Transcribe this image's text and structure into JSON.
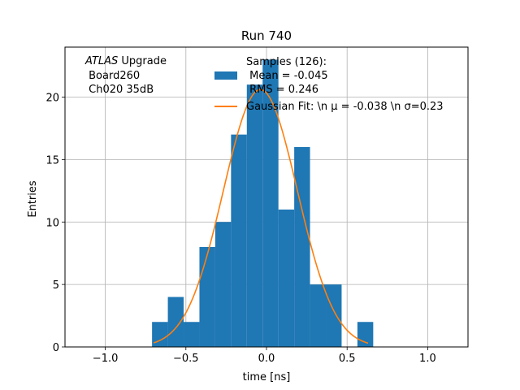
{
  "chart_data": {
    "type": "bar",
    "title": "Run 740",
    "xlabel": "time [ns]",
    "ylabel": "Entries",
    "xlim": [
      -1.25,
      1.25
    ],
    "ylim": [
      0,
      24
    ],
    "grid": true,
    "legend_placement": "top-center",
    "annotation": {
      "italic": "ATLAS",
      "rest": " Upgrade",
      "line2": " Board260",
      "line3": " Ch020 35dB"
    },
    "x_ticks": [
      {
        "value": -1.0,
        "label": "−1.0"
      },
      {
        "value": -0.5,
        "label": "−0.5"
      },
      {
        "value": 0.0,
        "label": "0.0"
      },
      {
        "value": 0.5,
        "label": "0.5"
      },
      {
        "value": 1.0,
        "label": "1.0"
      }
    ],
    "y_ticks": [
      {
        "value": 0,
        "label": "0"
      },
      {
        "value": 5,
        "label": "5"
      },
      {
        "value": 10,
        "label": "10"
      },
      {
        "value": 15,
        "label": "15"
      },
      {
        "value": 20,
        "label": "20"
      }
    ],
    "histogram": {
      "name_lines": [
        "Samples (126):",
        " Mean = -0.045",
        " RMS = 0.246"
      ],
      "color": "#1f77b4",
      "bin_edges": [
        -0.71,
        -0.612,
        -0.514,
        -0.416,
        -0.318,
        -0.22,
        -0.122,
        -0.024,
        0.074,
        0.172,
        0.27,
        0.368,
        0.466,
        0.564,
        0.662
      ],
      "counts": [
        2,
        4,
        2,
        8,
        10,
        17,
        21,
        23,
        11,
        16,
        5,
        5,
        0,
        2
      ]
    },
    "fit": {
      "name": "Gaussian Fit: \\n μ = -0.038 \\n σ=0.23",
      "color": "#ff7f0e",
      "mu": -0.038,
      "sigma": 0.23,
      "amplitude": 20.6,
      "x_range": [
        -0.7,
        0.63
      ]
    }
  }
}
